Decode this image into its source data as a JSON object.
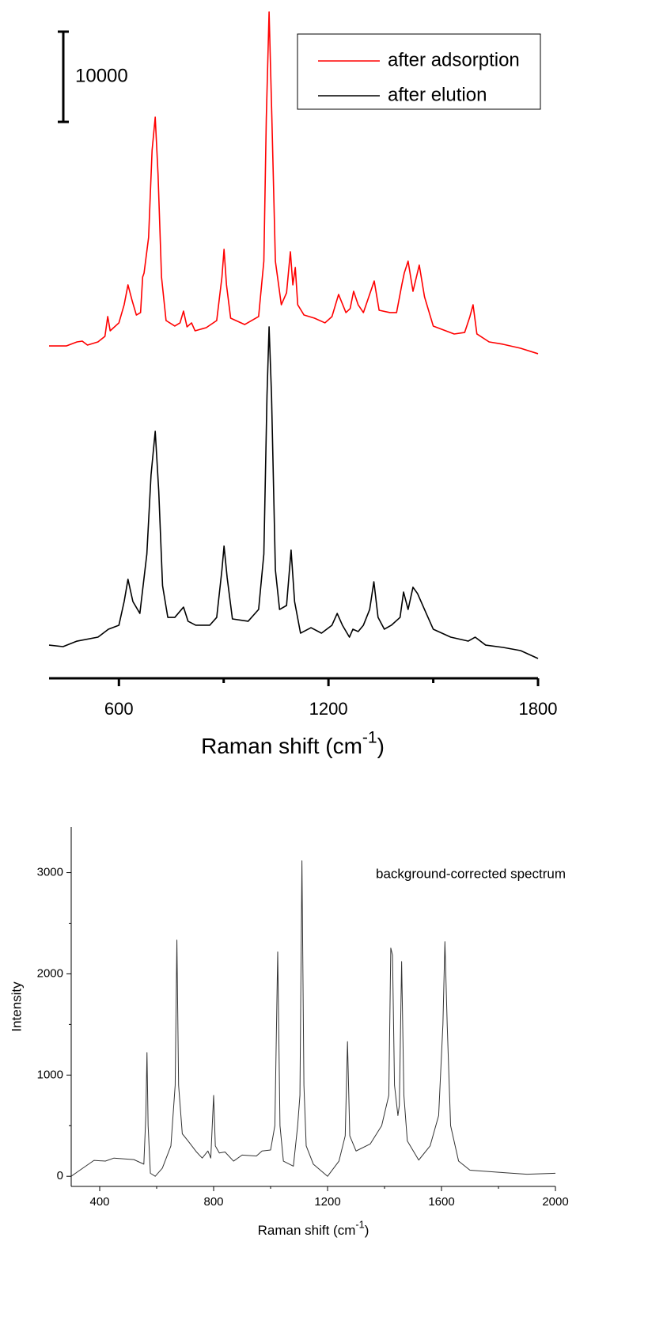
{
  "chart_data": [
    {
      "type": "line",
      "scale_bar": 10000,
      "xlabel": [
        "Raman shift (cm",
        "-1",
        ")"
      ],
      "xlim": [
        400,
        1800
      ],
      "xticks": [
        600,
        1200,
        1800
      ],
      "xminorticks": [
        900,
        1500
      ],
      "ylim": [
        0,
        75000
      ],
      "legend": "top-right",
      "series": [
        {
          "name": "after adsorption",
          "color": "#ff0000",
          "x": [
            400,
            450,
            480,
            495,
            510,
            540,
            560,
            568,
            575,
            600,
            615,
            626,
            638,
            650,
            662,
            668,
            672,
            685,
            695,
            704,
            712,
            722,
            735,
            760,
            775,
            785,
            795,
            808,
            818,
            850,
            880,
            895,
            901,
            908,
            920,
            960,
            1000,
            1015,
            1022,
            1030,
            1038,
            1048,
            1065,
            1080,
            1091,
            1098,
            1105,
            1112,
            1130,
            1160,
            1190,
            1210,
            1229,
            1250,
            1262,
            1272,
            1285,
            1300,
            1331,
            1345,
            1376,
            1395,
            1410,
            1417,
            1428,
            1442,
            1460,
            1475,
            1500,
            1560,
            1590,
            1605,
            1614,
            1625,
            1660,
            1700,
            1750,
            1800
          ],
          "values": [
            36840,
            36840,
            37280,
            37370,
            36930,
            37280,
            37900,
            40090,
            38510,
            39390,
            41400,
            43600,
            41840,
            40260,
            40530,
            44470,
            44910,
            48860,
            58510,
            62190,
            55880,
            44470,
            39650,
            39040,
            39390,
            40700,
            38950,
            39390,
            38510,
            38860,
            39650,
            44470,
            47540,
            43600,
            39910,
            39210,
            40090,
            46230,
            62020,
            73860,
            62020,
            46230,
            41400,
            42720,
            47280,
            43600,
            45530,
            41400,
            40260,
            39910,
            39390,
            40090,
            42540,
            40530,
            40970,
            42890,
            41400,
            40530,
            44030,
            40790,
            40530,
            40530,
            43600,
            44910,
            46230,
            42890,
            45790,
            42280,
            39040,
            38160,
            38330,
            40090,
            41400,
            38160,
            37280,
            37020,
            36580,
            35970
          ]
        },
        {
          "name": "after elution",
          "color": "#000000",
          "x": [
            400,
            440,
            480,
            540,
            570,
            600,
            615,
            626,
            640,
            660,
            680,
            692,
            704,
            714,
            725,
            740,
            760,
            785,
            798,
            820,
            860,
            880,
            895,
            901,
            910,
            925,
            970,
            1000,
            1015,
            1024,
            1030,
            1037,
            1048,
            1060,
            1080,
            1093,
            1103,
            1120,
            1150,
            1180,
            1210,
            1225,
            1240,
            1260,
            1270,
            1285,
            1300,
            1318,
            1330,
            1342,
            1360,
            1380,
            1405,
            1415,
            1428,
            1442,
            1455,
            1475,
            1500,
            1550,
            1600,
            1620,
            1650,
            1700,
            1750,
            1800
          ],
          "values": [
            3680,
            3510,
            4120,
            4560,
            5440,
            5880,
            8510,
            10970,
            8510,
            7190,
            13770,
            22540,
            27370,
            20790,
            10260,
            6750,
            6750,
            7890,
            6320,
            5880,
            5880,
            6750,
            12020,
            14650,
            11140,
            6580,
            6320,
            7630,
            13770,
            31320,
            38950,
            31320,
            12020,
            7630,
            8070,
            14210,
            8510,
            5000,
            5610,
            5000,
            5880,
            7190,
            5880,
            4560,
            5440,
            5180,
            5880,
            7630,
            10700,
            6750,
            5440,
            5880,
            6750,
            9560,
            7630,
            10090,
            9390,
            7630,
            5440,
            4560,
            4120,
            4560,
            3680,
            3420,
            3070,
            2190
          ]
        }
      ]
    },
    {
      "type": "line",
      "annotation": "background-corrected spectrum",
      "xlabel": [
        "Raman shift (cm",
        "-1",
        ")"
      ],
      "ylabel": "Intensity",
      "xlim": [
        300,
        2000
      ],
      "xticks": [
        400,
        800,
        1200,
        1600,
        2000
      ],
      "xminorticks": [
        600,
        1000,
        1400,
        1800
      ],
      "ylim": [
        -100,
        3450
      ],
      "yticks": [
        0,
        1000,
        2000,
        3000
      ],
      "yminorticks": [
        500,
        1500,
        2500
      ],
      "color": "#333333",
      "x": [
        300,
        320,
        380,
        420,
        450,
        520,
        555,
        562,
        566,
        570,
        578,
        595,
        620,
        650,
        665,
        671,
        677,
        690,
        710,
        740,
        760,
        780,
        790,
        800,
        806,
        820,
        840,
        870,
        900,
        950,
        970,
        1000,
        1015,
        1025,
        1033,
        1045,
        1080,
        1095,
        1103,
        1110,
        1117,
        1125,
        1150,
        1200,
        1240,
        1262,
        1270,
        1278,
        1300,
        1350,
        1390,
        1415,
        1422,
        1428,
        1435,
        1447,
        1452,
        1460,
        1468,
        1480,
        1520,
        1560,
        1590,
        1605,
        1612,
        1620,
        1632,
        1660,
        1700,
        1800,
        1900,
        2000
      ],
      "values": [
        0,
        40,
        157,
        150,
        180,
        165,
        120,
        600,
        1222,
        500,
        30,
        0,
        80,
        300,
        900,
        2334,
        900,
        420,
        350,
        240,
        180,
        250,
        180,
        799,
        300,
        230,
        240,
        150,
        210,
        200,
        250,
        260,
        500,
        2216,
        500,
        150,
        100,
        500,
        800,
        3117,
        900,
        300,
        120,
        0,
        150,
        400,
        1331,
        400,
        250,
        320,
        500,
        800,
        2255,
        2185,
        900,
        600,
        700,
        2122,
        800,
        350,
        160,
        300,
        600,
        1500,
        2318,
        1500,
        500,
        150,
        60,
        40,
        20,
        30
      ]
    }
  ]
}
